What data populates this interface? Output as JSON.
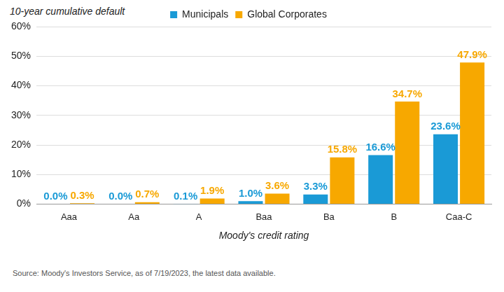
{
  "chart_data": {
    "type": "bar",
    "y_label": "10-year cumulative default",
    "x_label": "Moody's credit rating",
    "source": "Source: Moody's Investors Service, as of 7/19/2023, the latest data available.",
    "categories": [
      "Aaa",
      "Aa",
      "A",
      "Baa",
      "Ba",
      "B",
      "Caa-C"
    ],
    "series": [
      {
        "name": "Municipals",
        "color": "#1a9ad6",
        "values": [
          0.0,
          0.0,
          0.1,
          1.0,
          3.3,
          16.6,
          23.6
        ],
        "value_labels": [
          "0.0%",
          "0.0%",
          "0.1%",
          "1.0%",
          "3.3%",
          "16.6%",
          "23.6%"
        ]
      },
      {
        "name": "Global Corporates",
        "color": "#f7a800",
        "values": [
          0.3,
          0.7,
          1.9,
          3.6,
          15.8,
          34.7,
          47.9
        ],
        "value_labels": [
          "0.3%",
          "0.7%",
          "1.9%",
          "3.6%",
          "15.8%",
          "34.7%",
          "47.9%"
        ]
      }
    ],
    "ylim": [
      0,
      60
    ],
    "yticks": [
      {
        "value": 0,
        "label": "0%"
      },
      {
        "value": 10,
        "label": "10%"
      },
      {
        "value": 20,
        "label": "20%"
      },
      {
        "value": 30,
        "label": "30%"
      },
      {
        "value": 40,
        "label": "40%"
      },
      {
        "value": 50,
        "label": "50%"
      },
      {
        "value": 60,
        "label": "60%"
      }
    ],
    "grid": true,
    "legend": "top",
    "data_labels": true
  }
}
